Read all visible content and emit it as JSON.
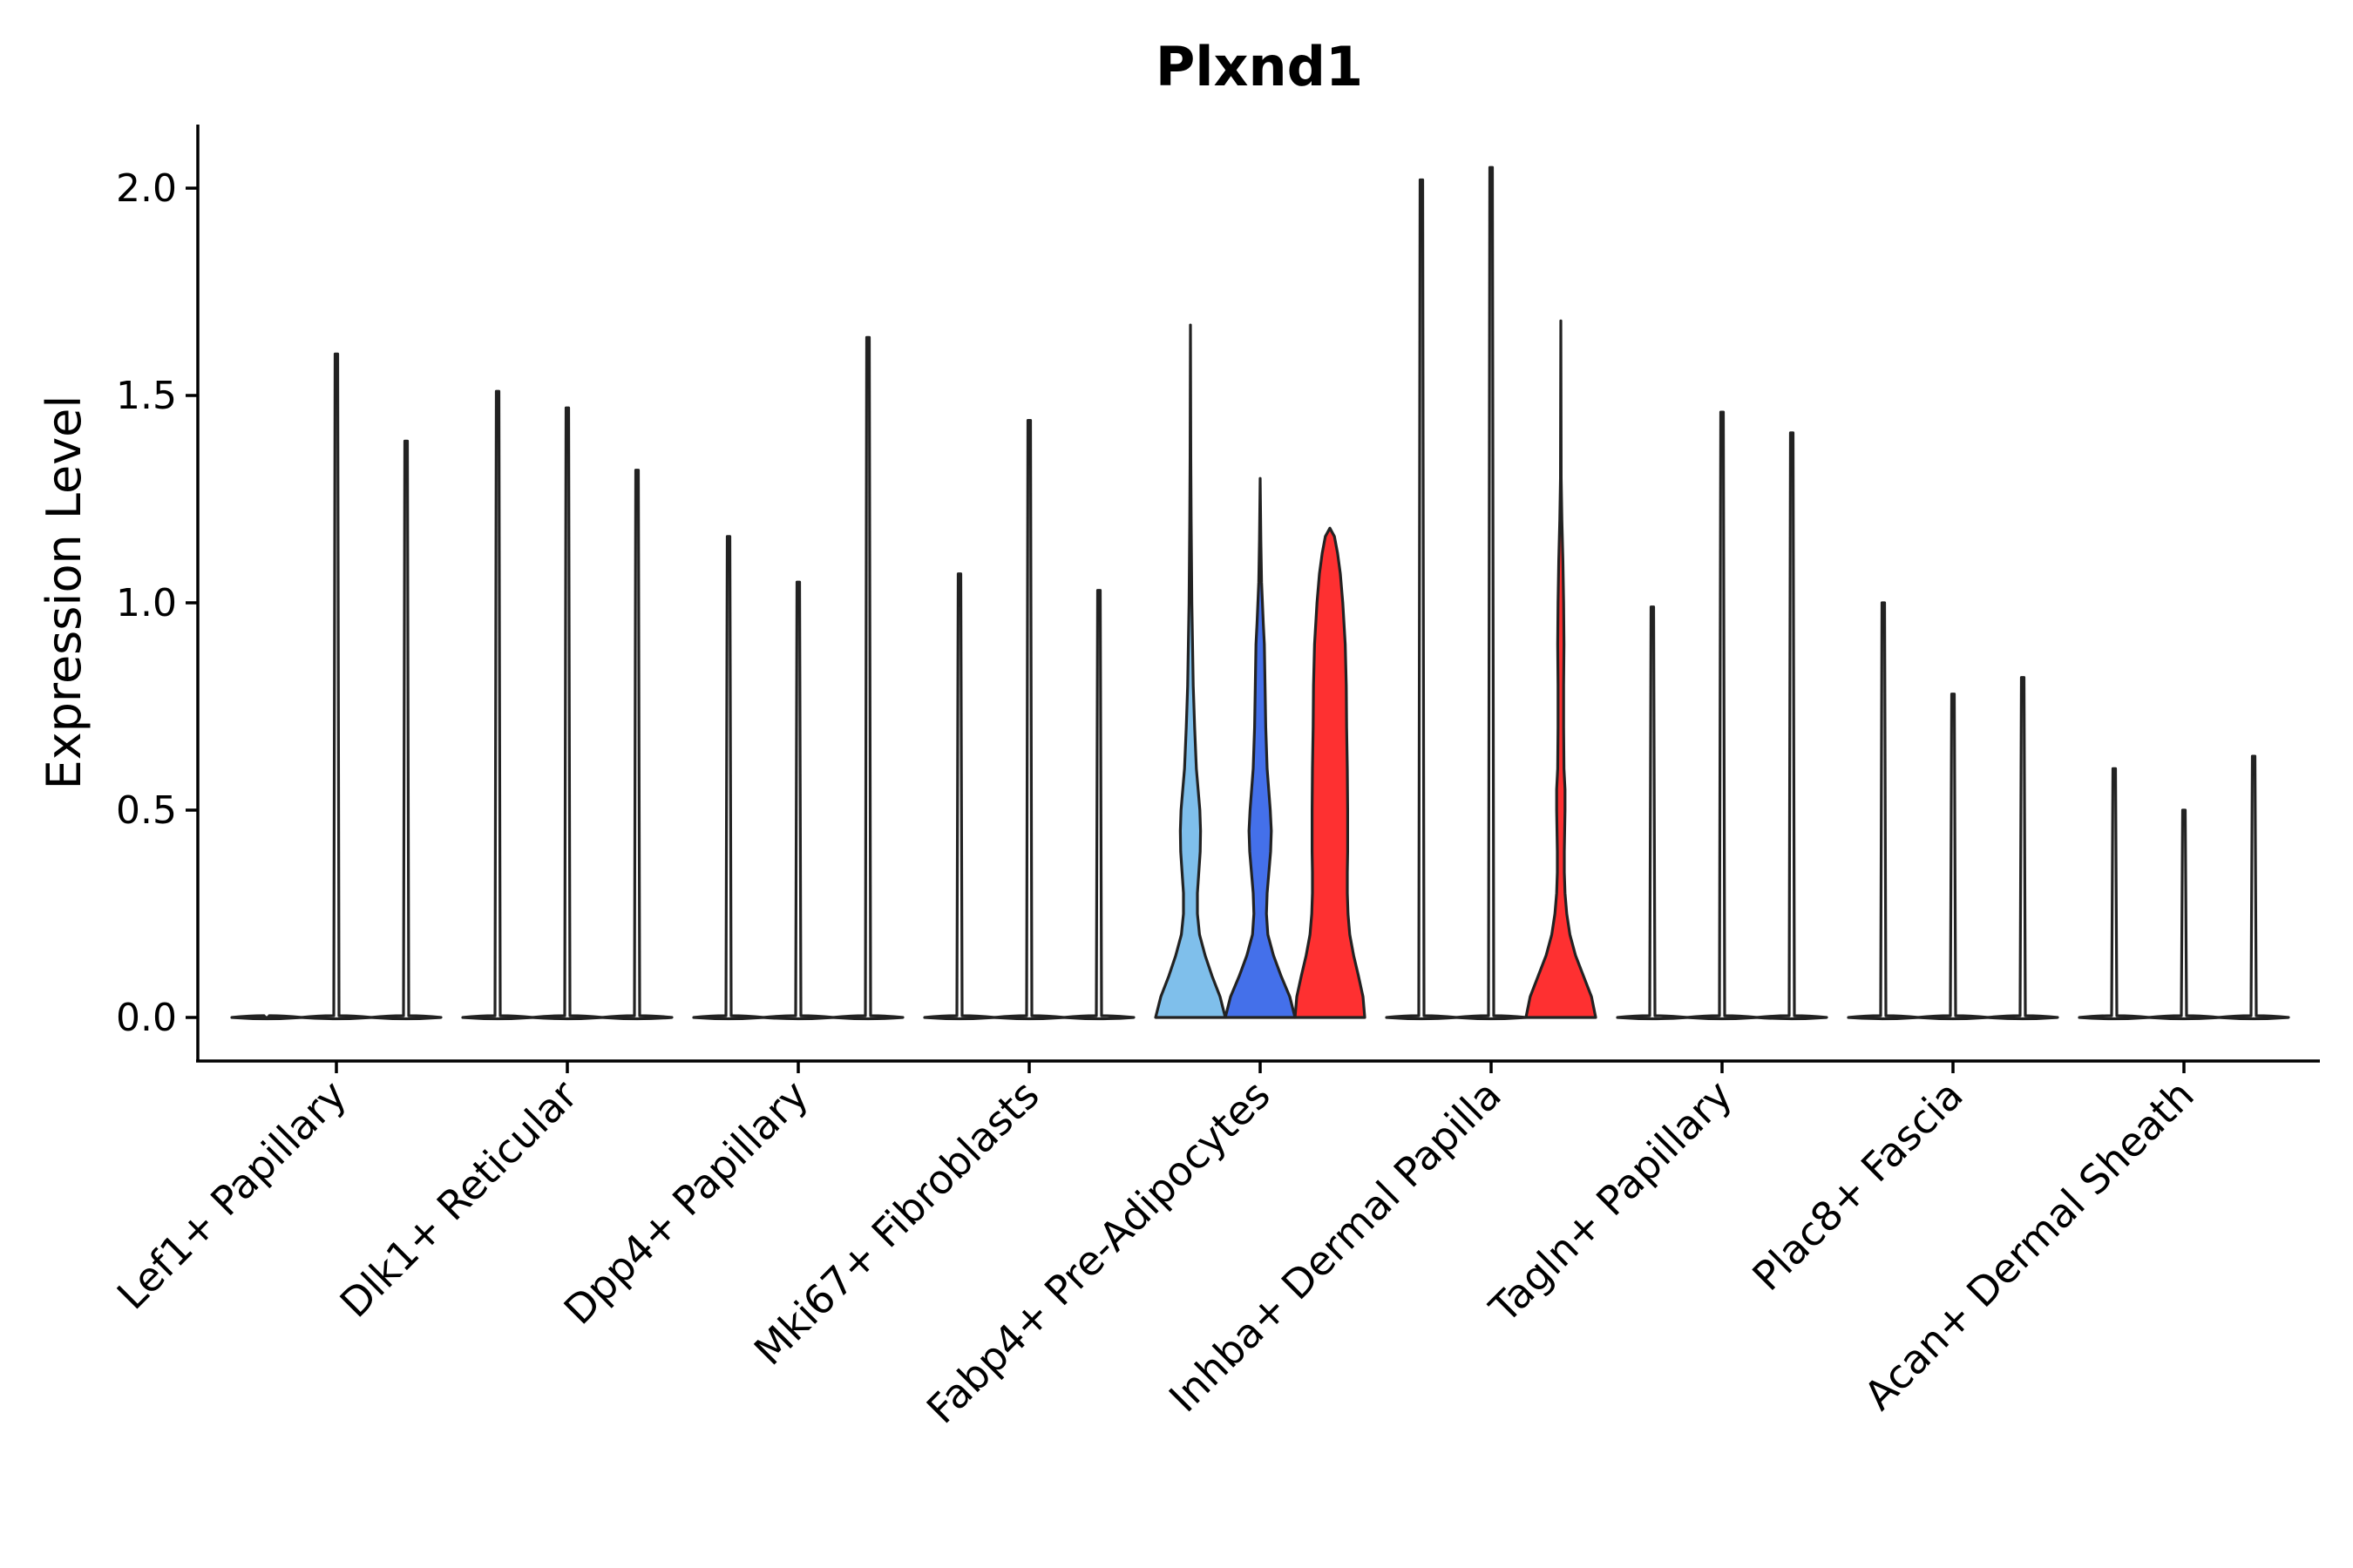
{
  "chart_data": {
    "type": "violin",
    "title": "Plxnd1",
    "xlabel": "",
    "ylabel": "Expression Level",
    "ylim": [
      -0.1,
      2.15
    ],
    "yticks": [
      "0.0",
      "0.5",
      "1.0",
      "1.5",
      "2.0"
    ],
    "grid": false,
    "legend": "none",
    "categories": [
      "Lef1+ Papillary",
      "Dlk1+ Reticular",
      "Dpp4+ Papillary",
      "Mki67+ Fibroblasts",
      "Fabp4+ Pre-Adipocytes",
      "Inhba+ Dermal Papilla",
      "Tagln+ Papillary",
      "Plac8+ Fascia",
      "Acan+ Dermal Sheath"
    ],
    "violins": [
      {
        "category": 0,
        "offset": -1,
        "max": 0.0,
        "color": "#ffffff"
      },
      {
        "category": 0,
        "offset": 0,
        "max": 1.6,
        "color": "#ffffff"
      },
      {
        "category": 0,
        "offset": 1,
        "max": 1.39,
        "color": "#ffffff"
      },
      {
        "category": 1,
        "offset": -1,
        "max": 1.51,
        "color": "#ffffff"
      },
      {
        "category": 1,
        "offset": 0,
        "max": 1.47,
        "color": "#ffffff"
      },
      {
        "category": 1,
        "offset": 1,
        "max": 1.32,
        "color": "#ffffff"
      },
      {
        "category": 2,
        "offset": -1,
        "max": 1.16,
        "color": "#ffffff"
      },
      {
        "category": 2,
        "offset": 0,
        "max": 1.05,
        "color": "#ffffff"
      },
      {
        "category": 2,
        "offset": 1,
        "max": 1.64,
        "color": "#ffffff"
      },
      {
        "category": 3,
        "offset": -1,
        "max": 1.07,
        "color": "#ffffff"
      },
      {
        "category": 3,
        "offset": 0,
        "max": 1.44,
        "color": "#ffffff"
      },
      {
        "category": 3,
        "offset": 1,
        "max": 1.03,
        "color": "#ffffff"
      },
      {
        "category": 4,
        "offset": -1,
        "max": 1.67,
        "color": "#7fbfeb",
        "profile": [
          [
            0,
            1.0
          ],
          [
            0.05,
            0.85
          ],
          [
            0.1,
            0.62
          ],
          [
            0.15,
            0.42
          ],
          [
            0.2,
            0.26
          ],
          [
            0.25,
            0.2
          ],
          [
            0.3,
            0.2
          ],
          [
            0.35,
            0.24
          ],
          [
            0.4,
            0.28
          ],
          [
            0.45,
            0.29
          ],
          [
            0.5,
            0.27
          ],
          [
            0.55,
            0.22
          ],
          [
            0.6,
            0.17
          ],
          [
            0.7,
            0.12
          ],
          [
            0.8,
            0.08
          ],
          [
            0.9,
            0.06
          ],
          [
            1.0,
            0.04
          ],
          [
            1.1,
            0.03
          ],
          [
            1.2,
            0.02
          ],
          [
            1.35,
            0.01
          ],
          [
            1.67,
            0.0
          ]
        ]
      },
      {
        "category": 4,
        "offset": 0,
        "max": 1.3,
        "color": "#4470ea",
        "profile": [
          [
            0,
            1.0
          ],
          [
            0.05,
            0.85
          ],
          [
            0.1,
            0.6
          ],
          [
            0.15,
            0.38
          ],
          [
            0.2,
            0.22
          ],
          [
            0.25,
            0.18
          ],
          [
            0.3,
            0.2
          ],
          [
            0.35,
            0.25
          ],
          [
            0.4,
            0.3
          ],
          [
            0.45,
            0.32
          ],
          [
            0.5,
            0.29
          ],
          [
            0.6,
            0.2
          ],
          [
            0.7,
            0.16
          ],
          [
            0.8,
            0.14
          ],
          [
            0.9,
            0.12
          ],
          [
            0.95,
            0.09
          ],
          [
            1.05,
            0.04
          ],
          [
            1.15,
            0.02
          ],
          [
            1.3,
            0.0
          ]
        ]
      },
      {
        "category": 4,
        "offset": 1,
        "max": 1.18,
        "color": "#fe3031",
        "profile": [
          [
            0,
            1.0
          ],
          [
            0.05,
            0.95
          ],
          [
            0.1,
            0.82
          ],
          [
            0.15,
            0.68
          ],
          [
            0.2,
            0.57
          ],
          [
            0.25,
            0.52
          ],
          [
            0.3,
            0.5
          ],
          [
            0.35,
            0.5
          ],
          [
            0.4,
            0.51
          ],
          [
            0.5,
            0.51
          ],
          [
            0.6,
            0.5
          ],
          [
            0.7,
            0.48
          ],
          [
            0.8,
            0.47
          ],
          [
            0.9,
            0.44
          ],
          [
            1.0,
            0.37
          ],
          [
            1.07,
            0.3
          ],
          [
            1.12,
            0.22
          ],
          [
            1.16,
            0.13
          ],
          [
            1.18,
            0.0
          ]
        ]
      },
      {
        "category": 5,
        "offset": -1,
        "max": 2.02,
        "color": "#ffffff"
      },
      {
        "category": 5,
        "offset": 0,
        "max": 2.05,
        "color": "#ffffff"
      },
      {
        "category": 5,
        "offset": 1,
        "max": 1.68,
        "color": "#fe3031",
        "profile": [
          [
            0,
            1.0
          ],
          [
            0.05,
            0.88
          ],
          [
            0.1,
            0.65
          ],
          [
            0.15,
            0.42
          ],
          [
            0.2,
            0.26
          ],
          [
            0.25,
            0.17
          ],
          [
            0.3,
            0.12
          ],
          [
            0.35,
            0.1
          ],
          [
            0.4,
            0.1
          ],
          [
            0.5,
            0.12
          ],
          [
            0.55,
            0.12
          ],
          [
            0.6,
            0.09
          ],
          [
            0.7,
            0.08
          ],
          [
            0.8,
            0.08
          ],
          [
            0.9,
            0.09
          ],
          [
            1.0,
            0.08
          ],
          [
            1.1,
            0.06
          ],
          [
            1.2,
            0.03
          ],
          [
            1.3,
            0.01
          ],
          [
            1.68,
            0.0
          ]
        ]
      },
      {
        "category": 6,
        "offset": -1,
        "max": 0.99,
        "color": "#ffffff"
      },
      {
        "category": 6,
        "offset": 0,
        "max": 1.46,
        "color": "#ffffff"
      },
      {
        "category": 6,
        "offset": 1,
        "max": 1.41,
        "color": "#ffffff"
      },
      {
        "category": 7,
        "offset": -1,
        "max": 1.0,
        "color": "#ffffff"
      },
      {
        "category": 7,
        "offset": 0,
        "max": 0.78,
        "color": "#ffffff"
      },
      {
        "category": 7,
        "offset": 1,
        "max": 0.82,
        "color": "#ffffff"
      },
      {
        "category": 8,
        "offset": -1,
        "max": 0.6,
        "color": "#ffffff"
      },
      {
        "category": 8,
        "offset": 0,
        "max": 0.5,
        "color": "#ffffff"
      },
      {
        "category": 8,
        "offset": 1,
        "max": 0.63,
        "color": "#ffffff"
      }
    ]
  }
}
